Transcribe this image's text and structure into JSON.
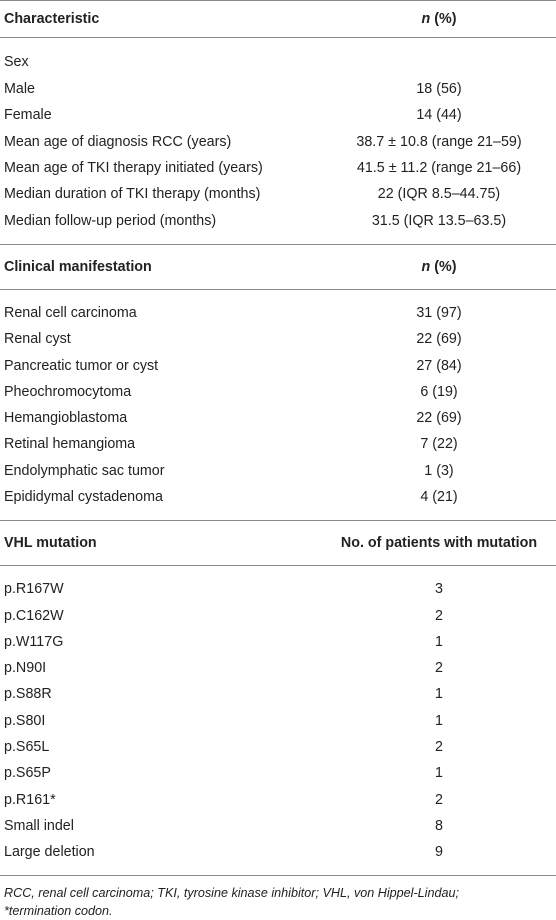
{
  "sections": [
    {
      "header": {
        "label": "Characteristic",
        "value_italic": "n",
        "value_rest": " (%)"
      },
      "group_label": "Sex",
      "rows": [
        {
          "label": "Male",
          "value": "18 (56)"
        },
        {
          "label": "Female",
          "value": "14 (44)"
        },
        {
          "label": "Mean age of diagnosis RCC (years)",
          "value": "38.7 ± 10.8 (range 21–59)"
        },
        {
          "label": "Mean age of TKI therapy initiated (years)",
          "value": "41.5 ± 11.2 (range 21–66)"
        },
        {
          "label": "Median duration of TKI therapy (months)",
          "value": "22 (IQR 8.5–44.75)"
        },
        {
          "label": "Median follow-up period (months)",
          "value": "31.5 (IQR 13.5–63.5)"
        }
      ]
    },
    {
      "header": {
        "label": "Clinical manifestation",
        "value_italic": "n",
        "value_rest": " (%)"
      },
      "rows": [
        {
          "label": "Renal cell carcinoma",
          "value": "31 (97)"
        },
        {
          "label": "Renal cyst",
          "value": "22 (69)"
        },
        {
          "label": "Pancreatic tumor or cyst",
          "value": "27 (84)"
        },
        {
          "label": "Pheochromocytoma",
          "value": "6 (19)"
        },
        {
          "label": "Hemangioblastoma",
          "value": "22 (69)"
        },
        {
          "label": "Retinal hemangioma",
          "value": "7 (22)"
        },
        {
          "label": "Endolymphatic sac tumor",
          "value": "1 (3)"
        },
        {
          "label": "Epididymal cystadenoma",
          "value": "4 (21)"
        }
      ]
    },
    {
      "header": {
        "label": "VHL mutation",
        "value_plain": "No. of patients with mutation"
      },
      "rows": [
        {
          "label": "p.R167W",
          "value": "3"
        },
        {
          "label": "p.C162W",
          "value": "2"
        },
        {
          "label": "p.W117G",
          "value": "1"
        },
        {
          "label": "p.N90I",
          "value": "2"
        },
        {
          "label": "p.S88R",
          "value": "1"
        },
        {
          "label": "p.S80I",
          "value": "1"
        },
        {
          "label": "p.S65L",
          "value": "2"
        },
        {
          "label": "p.S65P",
          "value": "1"
        },
        {
          "label": "p.R161*",
          "value": "2"
        },
        {
          "label": "Small indel",
          "value": "8"
        },
        {
          "label": "Large deletion",
          "value": "9"
        }
      ]
    }
  ],
  "footnote": {
    "line1": "RCC, renal cell carcinoma; TKI, tyrosine kinase inhibitor; VHL, von Hippel-Lindau;",
    "line2": "*termination codon."
  }
}
